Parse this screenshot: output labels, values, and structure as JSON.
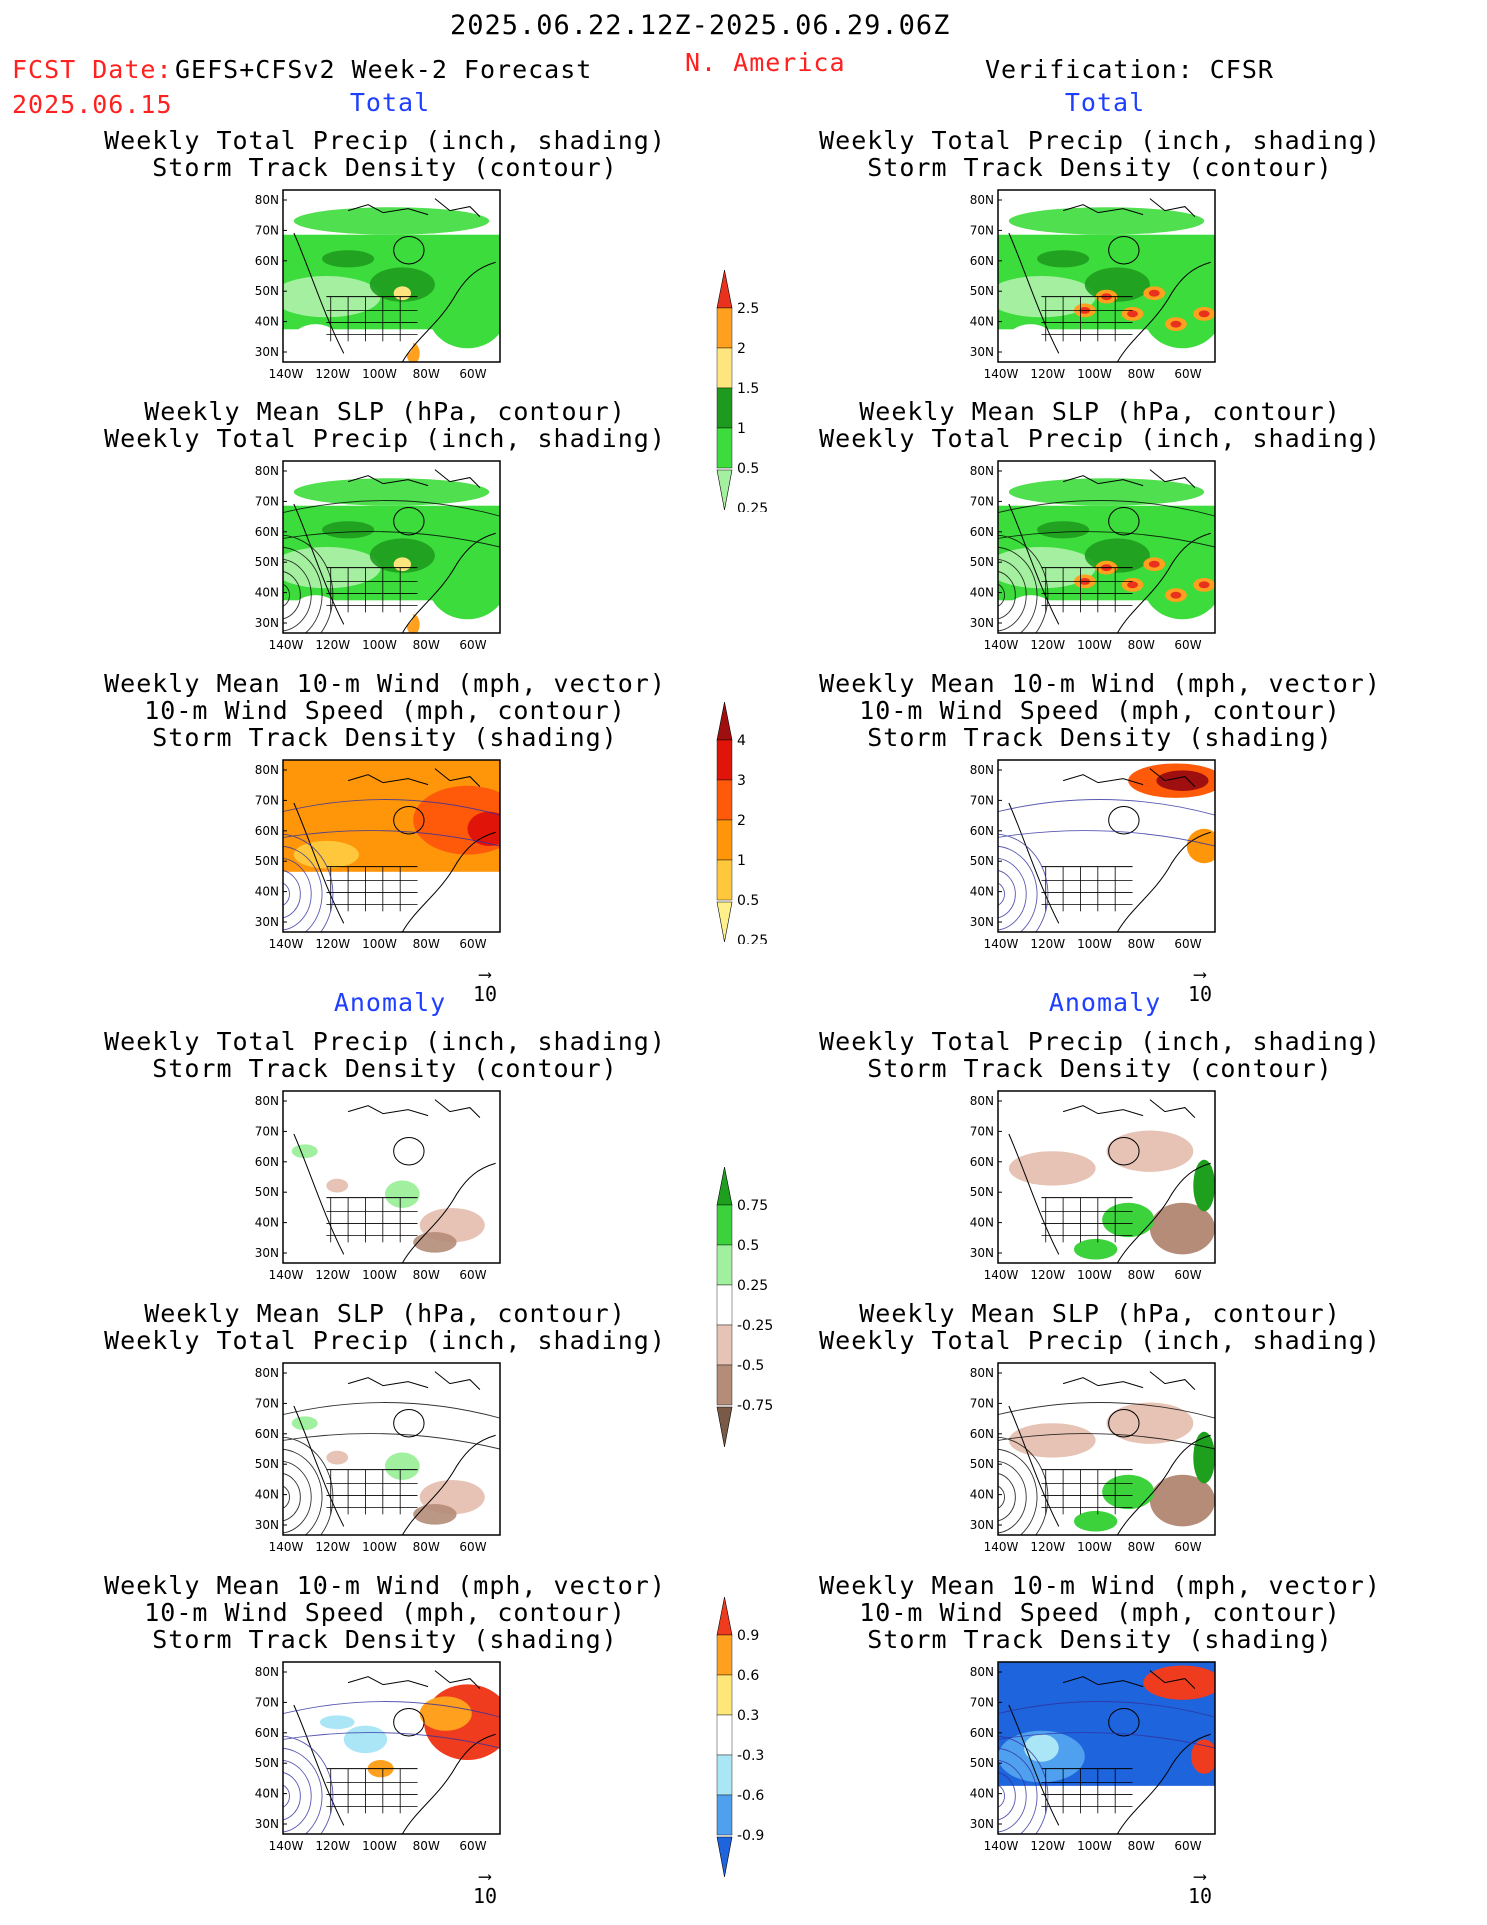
{
  "header": {
    "period": "2025.06.22.12Z-2025.06.29.06Z",
    "fcst_label": "FCST Date:",
    "model": "GEFS+CFSv2 Week-2 Forecast",
    "region": "N. America",
    "verification": "Verification: CFSR",
    "fcst_date": "2025.06.15"
  },
  "sections": {
    "total": "Total",
    "anomaly": "Anomaly"
  },
  "titles": {
    "precip_storm": [
      "Weekly Total Precip (inch, shading)",
      "Storm Track Density (contour)"
    ],
    "slp_precip": [
      "Weekly Mean SLP (hPa, contour)",
      "Weekly Total Precip (inch, shading)"
    ],
    "wind_storm": [
      "Weekly Mean 10-m Wind (mph, vector)",
      "10-m Wind Speed (mph, contour)",
      "Storm Track Density (shading)"
    ]
  },
  "axes": {
    "lat_labels": [
      "80N",
      "70N",
      "60N",
      "50N",
      "40N",
      "30N"
    ],
    "lon_labels": [
      "140W",
      "120W",
      "100W",
      "80W",
      "60W"
    ]
  },
  "vector_ref": "10",
  "colorbars": {
    "precip_total": {
      "labels": [
        "2.5",
        "2",
        "1.5",
        "1",
        "0.5",
        "0.25"
      ],
      "colors": [
        "#e8321e",
        "#ffa01e",
        "#ffe57d",
        "#1e9b1e",
        "#3cdc3c",
        "#a5f0a0"
      ]
    },
    "storm_total": {
      "labels": [
        "4",
        "3",
        "2",
        "1",
        "0.5",
        "0.25"
      ],
      "colors": [
        "#a00f0f",
        "#e1140a",
        "#ff5a0a",
        "#ff960a",
        "#ffc83c",
        "#fff08c"
      ]
    },
    "precip_anom": {
      "labels": [
        "0.75",
        "0.5",
        "0.25",
        "-0.25",
        "-0.5",
        "-0.75"
      ],
      "colors": [
        "#1ea01e",
        "#3cd23c",
        "#a0f0a0",
        "#ffffff",
        "#e6c3b4",
        "#b48c78",
        "#785a46"
      ]
    },
    "storm_anom": {
      "labels": [
        "0.9",
        "0.6",
        "0.3",
        "-0.3",
        "-0.6",
        "-0.9"
      ],
      "colors": [
        "#f03c1e",
        "#ffa01e",
        "#ffe678",
        "#ffffff",
        "#aae6f5",
        "#50a0f0",
        "#1e64dc"
      ]
    }
  },
  "colors": {
    "header_red": "#ff2020",
    "section_blue": "#1f3fff",
    "precip_green": "#3cdc3c",
    "storm_orange": "#ffa01e",
    "anom_brown": "#b48c78",
    "anom_blue": "#1e64dc"
  }
}
